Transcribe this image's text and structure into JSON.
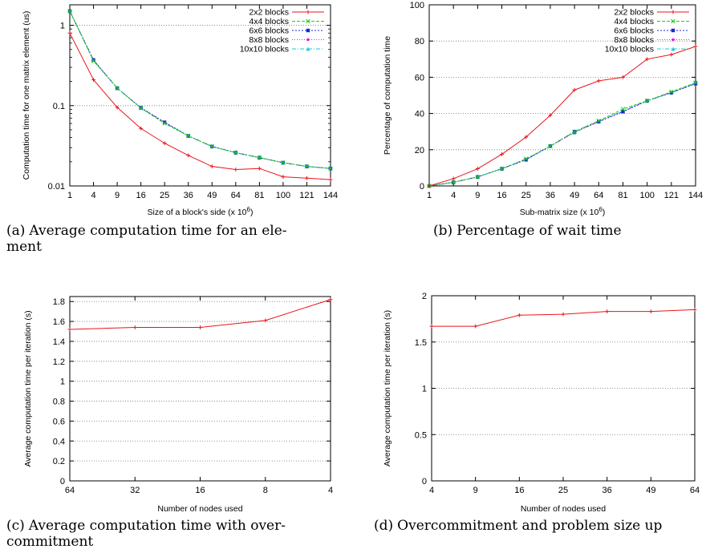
{
  "captions": {
    "a": {
      "label": "(a)",
      "text": "Average computation time for an ele-",
      "text2": "ment"
    },
    "b": {
      "label": "(b)",
      "text": "Percentage of wait time"
    },
    "c": {
      "label": "(c)",
      "text": "Average computation time with over-",
      "text2": "commitment"
    },
    "d": {
      "label": "(d)",
      "text": "Overcommitment and problem size up"
    }
  },
  "chart_data": [
    {
      "id": "a",
      "type": "line",
      "yscale": "log",
      "ylim": [
        0.01,
        1.8
      ],
      "yticks": [
        0.01,
        0.1,
        1
      ],
      "ytick_labels": [
        "0.01",
        "0.1",
        "1"
      ],
      "xlabel": "Size of a block's side (x 10",
      "xlabel_sup": "6",
      "xlabel_tail": ")",
      "ylabel": "Computation time for one matrix element (us)",
      "categories": [
        "1",
        "4",
        "9",
        "16",
        "25",
        "36",
        "49",
        "64",
        "81",
        "100",
        "121",
        "144"
      ],
      "grid": "horizontal dotted",
      "legend_position": "top-right",
      "series": [
        {
          "name": "2x2 blocks",
          "color": "#e8151b",
          "values": [
            0.8,
            0.21,
            0.095,
            0.052,
            0.034,
            0.024,
            0.0175,
            0.016,
            0.0165,
            0.013,
            0.0125,
            0.012
          ]
        },
        {
          "name": "4x4 blocks",
          "color": "#1fd01f",
          "values": [
            1.5,
            0.36,
            0.165,
            0.093,
            0.06,
            0.042,
            0.031,
            0.026,
            0.0225,
            0.0195,
            0.0175,
            0.0165
          ]
        },
        {
          "name": "6x6 blocks",
          "color": "#1a28d4",
          "values": [
            1.5,
            0.37,
            0.165,
            0.094,
            0.062,
            0.042,
            0.031,
            0.026,
            0.0225,
            0.0195,
            0.0175,
            0.0165
          ]
        },
        {
          "name": "8x8 blocks",
          "color": "#e61ae6",
          "values": [
            1.5,
            0.37,
            0.165,
            0.094,
            0.062,
            0.042,
            0.031,
            0.026,
            0.0225,
            0.0195,
            0.0175,
            0.0165
          ]
        },
        {
          "name": "10x10 blocks",
          "color": "#19c9d4",
          "values": [
            1.5,
            0.37,
            0.165,
            0.094,
            0.062,
            0.042,
            0.031,
            0.026,
            0.0225,
            0.0195,
            0.0175,
            0.0165
          ]
        }
      ]
    },
    {
      "id": "b",
      "type": "line",
      "ylim": [
        0,
        100
      ],
      "yticks": [
        0,
        20,
        40,
        60,
        80,
        100
      ],
      "ytick_labels": [
        "0",
        "20",
        "40",
        "60",
        "80",
        "100"
      ],
      "xlabel": "Sub-matrix size (x 10",
      "xlabel_sup": "6",
      "xlabel_tail": ")",
      "ylabel": "Percentage of computation time",
      "categories": [
        "1",
        "4",
        "9",
        "16",
        "25",
        "36",
        "49",
        "64",
        "81",
        "100",
        "121",
        "144"
      ],
      "grid": "horizontal dotted",
      "legend_position": "top-right",
      "series": [
        {
          "name": "2x2 blocks",
          "color": "#e8151b",
          "values": [
            0,
            4,
            9.5,
            17.5,
            27,
            39,
            53,
            58,
            60,
            70,
            72.5,
            77
          ]
        },
        {
          "name": "4x4 blocks",
          "color": "#1fd01f",
          "values": [
            0,
            2,
            5,
            9.5,
            15,
            22,
            30,
            36,
            42.5,
            47,
            52,
            57
          ]
        },
        {
          "name": "6x6 blocks",
          "color": "#1a28d4",
          "values": [
            0,
            2,
            5,
            9.5,
            14.5,
            22,
            30,
            35.5,
            41,
            47,
            51.5,
            56.5
          ]
        },
        {
          "name": "8x8 blocks",
          "color": "#e61ae6",
          "values": [
            0,
            2,
            5,
            9.5,
            14.5,
            22,
            29.5,
            35.5,
            41,
            47,
            51.5,
            56.5
          ]
        },
        {
          "name": "10x10 blocks",
          "color": "#19c9d4",
          "values": [
            0,
            2,
            5,
            9.5,
            14.5,
            22,
            29.5,
            35.5,
            41.5,
            47,
            51.5,
            56.5
          ]
        }
      ]
    },
    {
      "id": "c",
      "type": "line",
      "ylim": [
        0,
        1.85
      ],
      "yticks": [
        0,
        0.2,
        0.4,
        0.6,
        0.8,
        1,
        1.2,
        1.4,
        1.6,
        1.8
      ],
      "ytick_labels": [
        "0",
        "0.2",
        "0.4",
        "0.6",
        "0.8",
        "1",
        "1.2",
        "1.4",
        "1.6",
        "1.8"
      ],
      "xlabel": "Number of nodes used",
      "ylabel": "Average computation time per iteration (s)",
      "categories": [
        "64",
        "32",
        "16",
        "8",
        "4"
      ],
      "grid": "horizontal dotted",
      "series": [
        {
          "color": "#e8151b",
          "values": [
            1.52,
            1.54,
            1.54,
            1.61,
            1.82
          ]
        }
      ]
    },
    {
      "id": "d",
      "type": "line",
      "ylim": [
        0,
        2
      ],
      "yticks": [
        0,
        0.5,
        1,
        1.5,
        2
      ],
      "ytick_labels": [
        "0",
        "0.5",
        "1",
        "1.5",
        "2"
      ],
      "xlabel": "Number of nodes used",
      "ylabel": "Average computation time per iteration (s)",
      "categories": [
        "4",
        "9",
        "16",
        "25",
        "36",
        "49",
        "64"
      ],
      "grid": "horizontal dotted",
      "series": [
        {
          "color": "#e8151b",
          "values": [
            1.67,
            1.67,
            1.79,
            1.8,
            1.83,
            1.83,
            1.85
          ]
        }
      ]
    }
  ]
}
